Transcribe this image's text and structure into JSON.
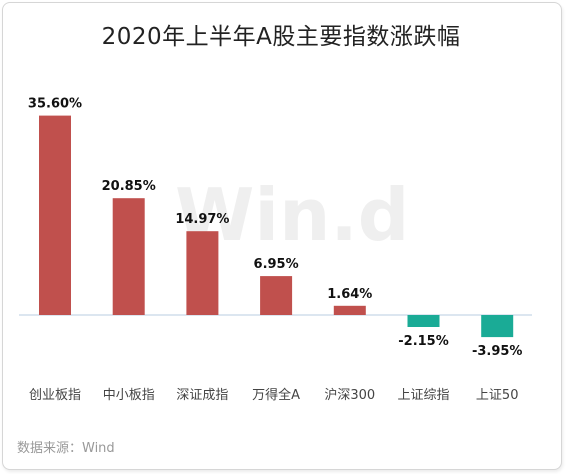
{
  "chart_data": {
    "type": "bar",
    "title": "2020年上半年A股主要指数涨跌幅",
    "categories": [
      "创业板指",
      "中小板指",
      "深证成指",
      "万得全A",
      "沪深300",
      "上证综指",
      "上证50"
    ],
    "values": [
      35.6,
      20.85,
      14.97,
      6.95,
      1.64,
      -2.15,
      -3.95
    ],
    "value_labels": [
      "35.60%",
      "20.85%",
      "14.97%",
      "6.95%",
      "1.64%",
      "-2.15%",
      "-3.95%"
    ],
    "unit": "%",
    "ylim": [
      -6,
      36
    ],
    "grid": false,
    "legend": "none",
    "colors": {
      "positive": "#c0504d",
      "negative": "#1aab96",
      "baseline": "#b8cde0"
    }
  },
  "watermark": "Win.d",
  "source": "数据来源：Wind"
}
